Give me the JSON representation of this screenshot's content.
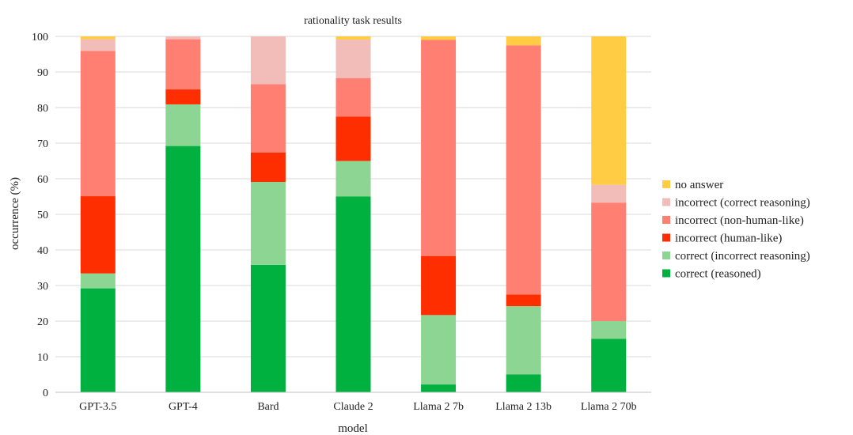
{
  "chart_data": {
    "type": "bar",
    "stacked": true,
    "title": "rationality task results",
    "xlabel": "model",
    "ylabel": "occurrence (%)",
    "ylim": [
      0,
      100
    ],
    "yticks": [
      0,
      10,
      20,
      30,
      40,
      50,
      60,
      70,
      80,
      90,
      100
    ],
    "grid": true,
    "legend_position": "right",
    "categories": [
      "GPT-3.5",
      "GPT-4",
      "Bard",
      "Claude 2",
      "Llama 2 7b",
      "Llama 2 13b",
      "Llama 2 70b"
    ],
    "series": [
      {
        "name": "correct (reasoned)",
        "color": "#00b140",
        "values": [
          29.2,
          69.2,
          35.8,
          55.0,
          2.2,
          5.0,
          15.0
        ]
      },
      {
        "name": "correct (incorrect reasoning)",
        "color": "#8dd593",
        "values": [
          4.2,
          11.7,
          23.3,
          10.0,
          19.5,
          19.2,
          5.0
        ]
      },
      {
        "name": "incorrect (human-like)",
        "color": "#ff2e00",
        "values": [
          21.7,
          4.2,
          8.3,
          12.5,
          16.6,
          3.3,
          0.0
        ]
      },
      {
        "name": "incorrect (non-human-like)",
        "color": "#ff7f72",
        "values": [
          40.8,
          14.1,
          19.2,
          10.8,
          60.7,
          70.0,
          33.3
        ]
      },
      {
        "name": "incorrect (correct reasoning)",
        "color": "#f2bdb8",
        "values": [
          3.3,
          0.8,
          13.4,
          10.8,
          0.0,
          0.0,
          5.0
        ]
      },
      {
        "name": "no answer",
        "color": "#ffcc44",
        "values": [
          0.8,
          0.0,
          0.0,
          0.9,
          1.0,
          2.5,
          41.7
        ]
      }
    ]
  }
}
